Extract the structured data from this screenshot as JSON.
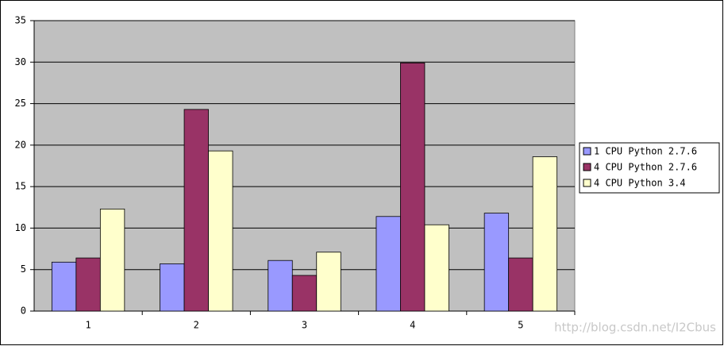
{
  "chart_data": {
    "type": "bar",
    "categories": [
      "1",
      "2",
      "3",
      "4",
      "5"
    ],
    "series": [
      {
        "name": "1 CPU Python 2.7.6",
        "color": "#9999ff",
        "values": [
          5.9,
          5.7,
          6.1,
          11.4,
          11.8
        ]
      },
      {
        "name": "4 CPU Python 2.7.6",
        "color": "#993366",
        "values": [
          6.4,
          24.3,
          4.3,
          29.9,
          6.4
        ]
      },
      {
        "name": "4 CPU Python 3.4",
        "color": "#ffffcc",
        "values": [
          12.3,
          19.3,
          7.1,
          10.4,
          18.6
        ]
      }
    ],
    "ylim": [
      0,
      35
    ],
    "yticks": [
      0,
      5,
      10,
      15,
      20,
      25,
      30,
      35
    ],
    "grid": true,
    "legend": "right",
    "plot_background": "#c0c0c0",
    "watermark": "http://blog.csdn.net/I2Cbus"
  }
}
